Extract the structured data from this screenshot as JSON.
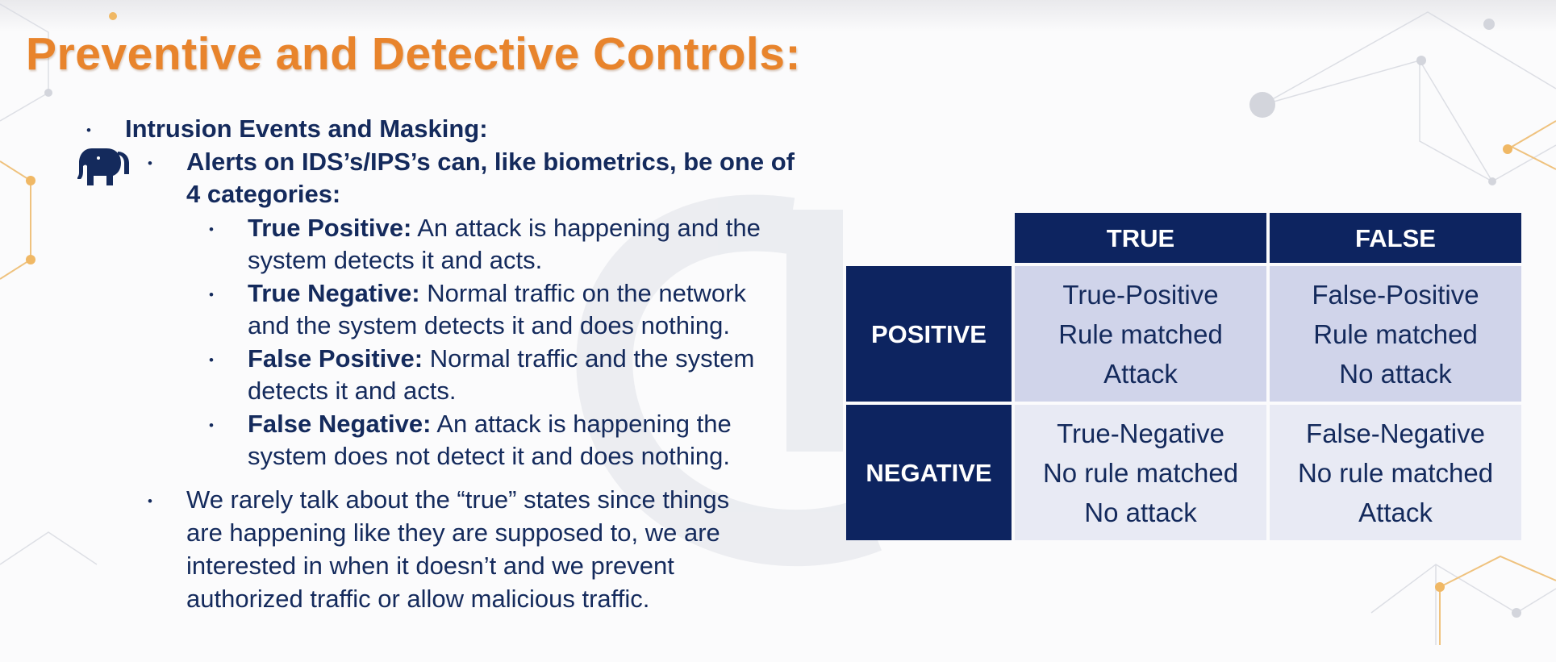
{
  "slide": {
    "title": "Preventive and Detective Controls:"
  },
  "content": {
    "level1_heading": "Intrusion Events and Masking:",
    "alerts_line1": "Alerts on IDS’s/IPS’s can, like biometrics, be one of",
    "alerts_line2": "4 categories:",
    "categories": [
      {
        "label": "True Positive:",
        "line1_text": " An attack is happening and the",
        "line2": "system detects it and acts."
      },
      {
        "label": "True Negative:",
        "line1_text": " Normal traffic on the network",
        "line2": "and the system detects it and does nothing."
      },
      {
        "label": "False Positive:",
        "line1_text": " Normal traffic and the system",
        "line2": "detects it and acts."
      },
      {
        "label": "False Negative:",
        "line1_text": " An attack is happening the",
        "line2": "system does not detect it and does nothing."
      }
    ],
    "rarely_lines": [
      "We rarely talk about the “true” states since things",
      "are happening like they are supposed to, we are",
      "interested in when it doesn’t and we prevent",
      "authorized traffic or allow malicious traffic."
    ],
    "bullet_glyph": "•"
  },
  "matrix": {
    "col_headers": [
      "TRUE",
      "FALSE"
    ],
    "row_headers": [
      "POSITIVE",
      "NEGATIVE"
    ],
    "cells": [
      [
        [
          "True-Positive",
          "Rule matched",
          "Attack"
        ],
        [
          "False-Positive",
          "Rule matched",
          "No attack"
        ]
      ],
      [
        [
          "True-Negative",
          "No rule matched",
          "No attack"
        ],
        [
          "False-Negative",
          "No rule matched",
          "Attack"
        ]
      ]
    ]
  },
  "colors": {
    "title": "#e8842c",
    "text": "#142a5c",
    "header_fill": "#0d2460",
    "positive_fill": "#d0d4ea",
    "negative_fill": "#e8eaf4"
  },
  "icons": {
    "elephant": "elephant-icon"
  }
}
